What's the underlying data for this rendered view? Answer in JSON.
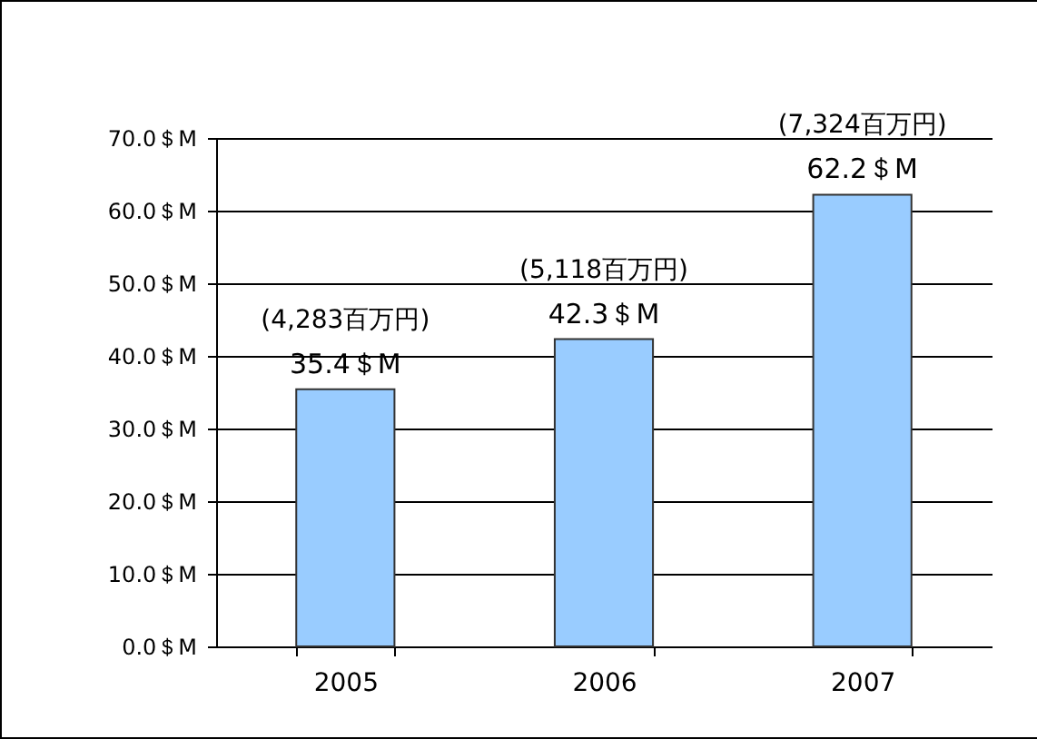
{
  "chart_data": {
    "type": "bar",
    "categories": [
      "2005",
      "2006",
      "2007"
    ],
    "values": [
      35.4,
      42.3,
      62.2
    ],
    "color": "#99ccff",
    "value_labels": [
      "35.4＄M",
      "42.3＄M",
      "62.2＄M"
    ],
    "ylim": [
      0,
      70
    ],
    "yticks": [
      {
        "value": 0,
        "label": "0.0＄M"
      },
      {
        "value": 10,
        "label": "10.0＄M"
      },
      {
        "value": 20,
        "label": "20.0＄M"
      },
      {
        "value": 30,
        "label": "30.0＄M"
      },
      {
        "value": 40,
        "label": "40.0＄M"
      },
      {
        "value": 50,
        "label": "50.0＄M"
      },
      {
        "value": 60,
        "label": "60.0＄M"
      },
      {
        "value": 70,
        "label": "70.0＄M"
      }
    ],
    "grid": "y",
    "annotations": [
      {
        "text": "(4,283百万円)",
        "x": "2005",
        "y": 35.4
      },
      {
        "text": "(5,118百万円)",
        "x": "2006",
        "y": 42.3
      },
      {
        "text": "(7,324百万円)",
        "x": "2007",
        "y": 62.2
      }
    ]
  }
}
